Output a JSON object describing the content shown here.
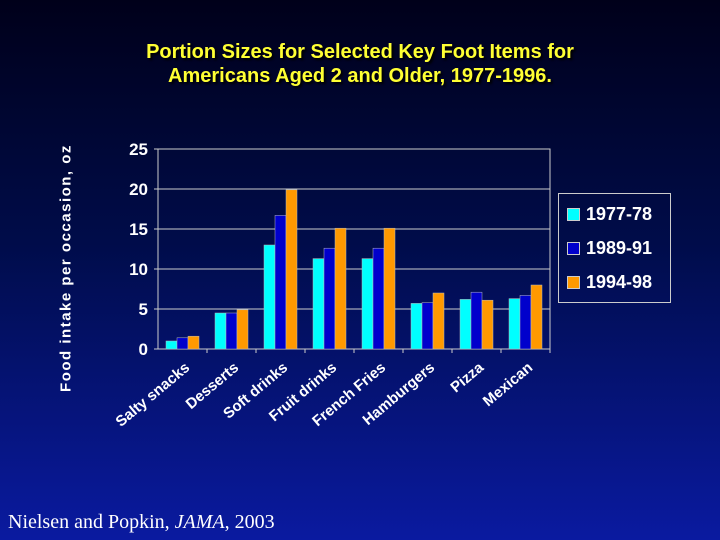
{
  "chart_data": {
    "type": "bar",
    "title": "Portion Sizes for Selected Key Foot Items for Americans Aged 2 and Older, 1977-1996.",
    "title_lines": [
      "Portion Sizes for Selected Key Foot Items for",
      "Americans Aged 2 and Older, 1977-1996."
    ],
    "xlabel": "",
    "ylabel": "Food intake per occasion, oz",
    "ylim": [
      0,
      25
    ],
    "yticks": [
      0,
      5,
      10,
      15,
      20,
      25
    ],
    "grid": true,
    "legend_position": "right",
    "categories": [
      "Salty snacks",
      "Desserts",
      "Soft drinks",
      "Fruit drinks",
      "French Fries",
      "Hamburgers",
      "Pizza",
      "Mexican"
    ],
    "series": [
      {
        "name": "1977-78",
        "color": "#00ffff",
        "values": [
          1.0,
          4.5,
          13.0,
          11.3,
          11.3,
          5.7,
          6.2,
          6.3
        ]
      },
      {
        "name": "1989-91",
        "color": "#0000cc",
        "values": [
          1.4,
          4.5,
          16.7,
          12.6,
          12.6,
          5.8,
          7.1,
          6.7
        ]
      },
      {
        "name": "1994-98",
        "color": "#ff9900",
        "values": [
          1.6,
          4.9,
          19.9,
          15.1,
          15.1,
          7.0,
          6.1,
          8.0
        ]
      }
    ]
  },
  "citation": {
    "authors": "Nielsen and Popkin, ",
    "journal": "JAMA",
    "year": ", 2003"
  }
}
